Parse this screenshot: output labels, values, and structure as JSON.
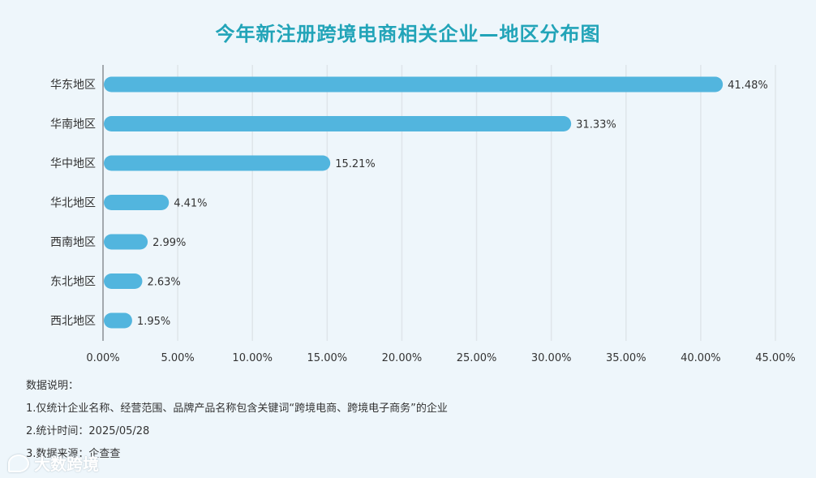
{
  "chart_data": {
    "type": "bar",
    "orientation": "horizontal",
    "title": "今年新注册跨境电商相关企业—地区分布图",
    "categories": [
      "华东地区",
      "华南地区",
      "华中地区",
      "华北地区",
      "西南地区",
      "东北地区",
      "西北地区"
    ],
    "values": [
      41.48,
      31.33,
      15.21,
      4.41,
      2.99,
      2.63,
      1.95
    ],
    "value_labels": [
      "41.48%",
      "31.33%",
      "15.21%",
      "4.41%",
      "2.99%",
      "2.63%",
      "1.95%"
    ],
    "xlim": [
      0,
      45
    ],
    "xticks": [
      0,
      5,
      10,
      15,
      20,
      25,
      30,
      35,
      40,
      45
    ],
    "xtick_labels": [
      "0.00%",
      "5.00%",
      "10.00%",
      "15.00%",
      "20.00%",
      "25.00%",
      "30.00%",
      "35.00%",
      "40.00%",
      "45.00%"
    ],
    "xlabel": "",
    "ylabel": "",
    "grid": true,
    "bar_color": "#52b5de",
    "title_color": "#22a4b8"
  },
  "notes": {
    "heading": "数据说明：",
    "line1": "1.仅统计企业名称、经营范围、品牌产品名称包含关键词“跨境电商、跨境电子商务”的企业",
    "line2": "2.统计时间：2025/05/28",
    "line3": "3.数据来源：企查查"
  },
  "watermark": {
    "text": "大数跨境",
    "icon": "logo-icon"
  }
}
